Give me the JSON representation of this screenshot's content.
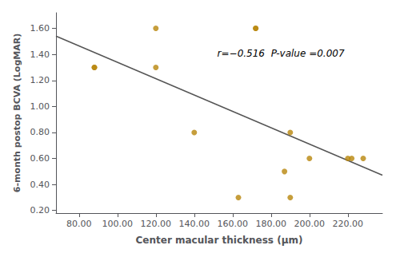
{
  "chart_data": {
    "type": "scatter",
    "xlabel": "Center macular thickness (μm)",
    "ylabel": "6-month postop BCVA (LogMAR)",
    "annotation": {
      "text": "r=−0.516  P-value =0.007",
      "x": 152,
      "y": 1.37
    },
    "xlim": [
      68,
      238
    ],
    "ylim": [
      0.18,
      1.72
    ],
    "xticks": [
      {
        "value": 80,
        "label": "80.00"
      },
      {
        "value": 100,
        "label": "100.00"
      },
      {
        "value": 120,
        "label": "120.00"
      },
      {
        "value": 140,
        "label": "140.00"
      },
      {
        "value": 160,
        "label": "160.00"
      },
      {
        "value": 180,
        "label": "180.00"
      },
      {
        "value": 200,
        "label": "200.00"
      },
      {
        "value": 220,
        "label": "220.00"
      }
    ],
    "yticks": [
      {
        "value": 0.2,
        "label": "0.20"
      },
      {
        "value": 0.4,
        "label": "0.40"
      },
      {
        "value": 0.6,
        "label": "0.60"
      },
      {
        "value": 0.8,
        "label": "0.80"
      },
      {
        "value": 1.0,
        "label": "1.00"
      },
      {
        "value": 1.2,
        "label": "1.20"
      },
      {
        "value": 1.4,
        "label": "1.40"
      },
      {
        "value": 1.6,
        "label": "1.60"
      }
    ],
    "grid": false,
    "series": [
      {
        "type": "scatter",
        "color": "#B8860B",
        "x": [
          88,
          88,
          120,
          120,
          140,
          163,
          172,
          172,
          187,
          190,
          190,
          200,
          220,
          222,
          228
        ],
        "values": [
          1.3,
          1.3,
          1.3,
          1.6,
          0.8,
          0.3,
          1.6,
          1.6,
          0.5,
          0.8,
          0.3,
          0.6,
          0.6,
          0.6,
          0.6
        ]
      },
      {
        "type": "line",
        "color": "#555555",
        "x": [
          68,
          238
        ],
        "values": [
          1.5406,
          0.4713
        ]
      }
    ]
  }
}
